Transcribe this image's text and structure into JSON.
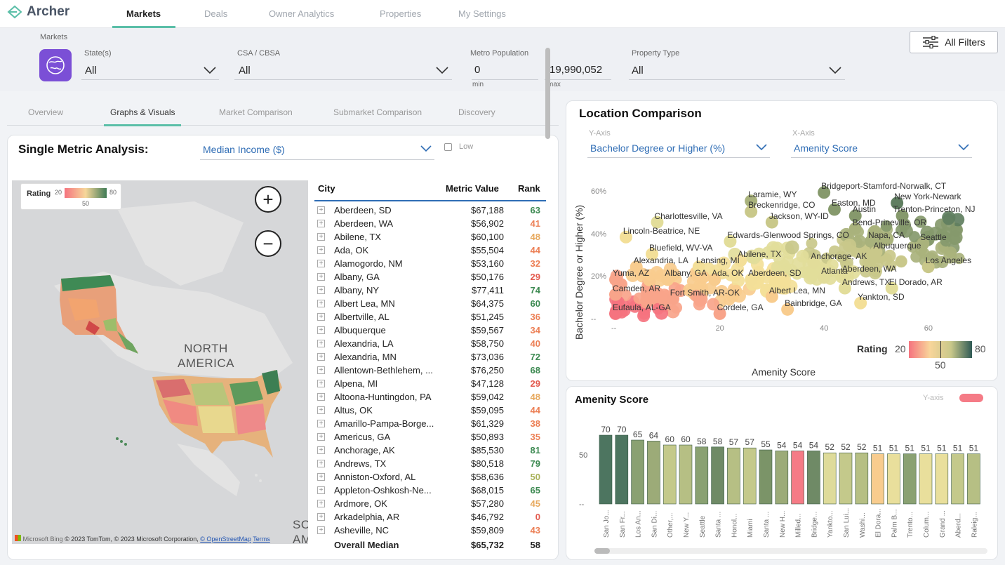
{
  "app": {
    "name": "Archer",
    "nav_tabs": [
      "Markets",
      "Deals",
      "Owner Analytics",
      "Properties",
      "My Settings"
    ]
  },
  "filters": {
    "section_label": "Markets",
    "states_label": "State(s)",
    "states_value": "All",
    "csa_label": "CSA / CBSA",
    "csa_value": "All",
    "pop_label": "Metro Population",
    "pop_min": "0",
    "pop_max": "19,990,052",
    "min_label": "min",
    "max_label": "max",
    "ptype_label": "Property Type",
    "ptype_value": "All",
    "all_filters": "All Filters"
  },
  "subtabs": [
    "Overview",
    "Graphs & Visuals",
    "Market Comparison",
    "Submarket Comparison",
    "Discovery"
  ],
  "single_metric": {
    "title": "Single Metric Analysis:",
    "metric": "Median Income ($)",
    "low_label": "Low",
    "legend": {
      "title": "Rating",
      "min": "20",
      "mid": "50",
      "max": "80"
    },
    "map_label_1": "NORTH",
    "map_label_2": "AMERICA",
    "map_edge_1": "SO",
    "map_edge_2": "AM",
    "attribution": "© 2023 TomTom, © 2023 Microsoft Corporation,",
    "attribution_link": "© OpenStreetMap",
    "attribution_terms": "Terms",
    "ms_logo": "Microsoft Bing",
    "table": {
      "headers": {
        "city": "City",
        "value": "Metric Value",
        "rank": "Rank"
      },
      "rows": [
        {
          "city": "Aberdeen, SD",
          "value": "$67,188",
          "rank": "63"
        },
        {
          "city": "Aberdeen, WA",
          "value": "$56,902",
          "rank": "41"
        },
        {
          "city": "Abilene, TX",
          "value": "$60,100",
          "rank": "48"
        },
        {
          "city": "Ada, OK",
          "value": "$55,504",
          "rank": "44"
        },
        {
          "city": "Alamogordo, NM",
          "value": "$53,160",
          "rank": "32"
        },
        {
          "city": "Albany, GA",
          "value": "$50,176",
          "rank": "29"
        },
        {
          "city": "Albany, NY",
          "value": "$77,411",
          "rank": "74"
        },
        {
          "city": "Albert Lea, MN",
          "value": "$64,375",
          "rank": "60"
        },
        {
          "city": "Albertville, AL",
          "value": "$51,245",
          "rank": "36"
        },
        {
          "city": "Albuquerque",
          "value": "$59,567",
          "rank": "34"
        },
        {
          "city": "Alexandria, LA",
          "value": "$58,750",
          "rank": "40"
        },
        {
          "city": "Alexandria, MN",
          "value": "$73,036",
          "rank": "72"
        },
        {
          "city": "Allentown-Bethlehem, ...",
          "value": "$76,250",
          "rank": "68"
        },
        {
          "city": "Alpena, MI",
          "value": "$47,128",
          "rank": "29"
        },
        {
          "city": "Altoona-Huntingdon, PA",
          "value": "$59,042",
          "rank": "48"
        },
        {
          "city": "Altus, OK",
          "value": "$59,095",
          "rank": "44"
        },
        {
          "city": "Amarillo-Pampa-Borge...",
          "value": "$61,329",
          "rank": "38"
        },
        {
          "city": "Americus, GA",
          "value": "$50,893",
          "rank": "35"
        },
        {
          "city": "Anchorage, AK",
          "value": "$85,530",
          "rank": "81"
        },
        {
          "city": "Andrews, TX",
          "value": "$80,518",
          "rank": "79"
        },
        {
          "city": "Anniston-Oxford, AL",
          "value": "$58,636",
          "rank": "50"
        },
        {
          "city": "Appleton-Oshkosh-Ne...",
          "value": "$68,015",
          "rank": "65"
        },
        {
          "city": "Ardmore, OK",
          "value": "$57,280",
          "rank": "45"
        },
        {
          "city": "Arkadelphia, AR",
          "value": "$46,792",
          "rank": "0"
        },
        {
          "city": "Asheville, NC",
          "value": "$59,809",
          "rank": "43"
        }
      ],
      "total_label": "Overall Median",
      "total_value": "$65,732",
      "total_rank": "58"
    }
  },
  "location_comparison": {
    "title": "Location Comparison",
    "y_axis_label": "Y-Axis",
    "y_metric": "Bachelor Degree or Higher (%)",
    "x_axis_label": "X-Axis",
    "x_metric": "Amenity Score",
    "chart_data": {
      "type": "scatter",
      "xlabel": "Amenity Score",
      "ylabel": "Bachelor Degree or Higher (%)",
      "x_ticks": [
        "--",
        "20",
        "40",
        "60"
      ],
      "y_ticks": [
        "60%",
        "40%",
        "20%",
        "--"
      ],
      "xlim": [
        0,
        70
      ],
      "ylim": [
        0,
        65
      ],
      "legend": {
        "title": "Rating",
        "min": "20",
        "mid": "50",
        "max": "80"
      },
      "labels": [
        {
          "text": "Bridgeport-Stamford-Norwalk, CT",
          "x": 40,
          "y": 60
        },
        {
          "text": "Laramie, WY",
          "x": 26,
          "y": 56
        },
        {
          "text": "New York-Newark",
          "x": 54,
          "y": 55
        },
        {
          "text": "Breckenridge, CO",
          "x": 26,
          "y": 51
        },
        {
          "text": "Easton, MD",
          "x": 42,
          "y": 52
        },
        {
          "text": "Austin",
          "x": 46,
          "y": 49
        },
        {
          "text": "Trenton-Princeton, NJ",
          "x": 55,
          "y": 49
        },
        {
          "text": "Charlottesville, VA",
          "x": 8,
          "y": 46
        },
        {
          "text": "Jackson, WY-ID",
          "x": 30,
          "y": 46
        },
        {
          "text": "Bend-Prineville, OR",
          "x": 46,
          "y": 43
        },
        {
          "text": "Lincoln-Beatrice, NE",
          "x": 2,
          "y": 39
        },
        {
          "text": "Edwards-Glenwood Springs, CO",
          "x": 22,
          "y": 37
        },
        {
          "text": "Napa, CA",
          "x": 49,
          "y": 37
        },
        {
          "text": "Seattle",
          "x": 59,
          "y": 36
        },
        {
          "text": "Bluefield, WV-VA",
          "x": 7,
          "y": 31
        },
        {
          "text": "Albuquerque",
          "x": 50,
          "y": 32
        },
        {
          "text": "Abilene, TX",
          "x": 24,
          "y": 28
        },
        {
          "text": "Anchorage, AK",
          "x": 38,
          "y": 27
        },
        {
          "text": "Alexandria, LA",
          "x": 4,
          "y": 25
        },
        {
          "text": "Lansing, MI",
          "x": 16,
          "y": 25
        },
        {
          "text": "Los Angeles",
          "x": 60,
          "y": 25
        },
        {
          "text": "Aberdeen, WA",
          "x": 44,
          "y": 21
        },
        {
          "text": "Yuma, AZ",
          "x": 0,
          "y": 19
        },
        {
          "text": "Albany, GA",
          "x": 10,
          "y": 19
        },
        {
          "text": "Ada, OK",
          "x": 19,
          "y": 19
        },
        {
          "text": "Aberdeen, SD",
          "x": 26,
          "y": 19
        },
        {
          "text": "Atlanta",
          "x": 40,
          "y": 20
        },
        {
          "text": "El Dorado, AR",
          "x": 53,
          "y": 15
        },
        {
          "text": "Andrews, TX",
          "x": 44,
          "y": 15
        },
        {
          "text": "Camden, AR",
          "x": 0,
          "y": 12
        },
        {
          "text": "Fort Smith, AR-OK",
          "x": 11,
          "y": 10
        },
        {
          "text": "Albert Lea, MN",
          "x": 30,
          "y": 11
        },
        {
          "text": "Yankton, SD",
          "x": 47,
          "y": 8
        },
        {
          "text": "Bainbridge, GA",
          "x": 33,
          "y": 5
        },
        {
          "text": "Eufaula, AL-GA",
          "x": 0,
          "y": 3
        },
        {
          "text": "Cordele, GA",
          "x": 20,
          "y": 3
        }
      ]
    }
  },
  "amenity": {
    "title": "Amenity Score",
    "y_axis_toggle": "Y-axis",
    "chart_data": {
      "type": "bar",
      "ylim": [
        0,
        75
      ],
      "y_ticks": [
        "50",
        "--"
      ],
      "categories": [
        "San Jo...",
        "San Fr...",
        "Los An...",
        "San Di...",
        "Other,...",
        "New Y...",
        "Seattle",
        "Santa ...",
        "Honol...",
        "Miami",
        "Santa ...",
        "New H...",
        "Milled...",
        "Bridge...",
        "Yankto...",
        "San Lui...",
        "Washi...",
        "El Dora...",
        "Palm B...",
        "Trento...",
        "Colum...",
        "Grand ...",
        "Aberd...",
        "Raleig..."
      ],
      "values": [
        70,
        70,
        65,
        64,
        60,
        60,
        58,
        58,
        57,
        57,
        55,
        54,
        54,
        54,
        52,
        52,
        52,
        51,
        51,
        51,
        51,
        51,
        51,
        51
      ],
      "colors": [
        "#4d7560",
        "#4d7560",
        "#8aa172",
        "#9cab78",
        "#c4c98b",
        "#b6bf84",
        "#8aa172",
        "#6f8a66",
        "#b6bf84",
        "#c4c98b",
        "#7b9468",
        "#9cab78",
        "#f57b86",
        "#6f8a66",
        "#dedb9a",
        "#c4c98b",
        "#b6bf84",
        "#f8cc8e",
        "#e9df9c",
        "#8aa172",
        "#e9df9c",
        "#e9df9c",
        "#c4c98b",
        "#b6bf84"
      ]
    }
  }
}
